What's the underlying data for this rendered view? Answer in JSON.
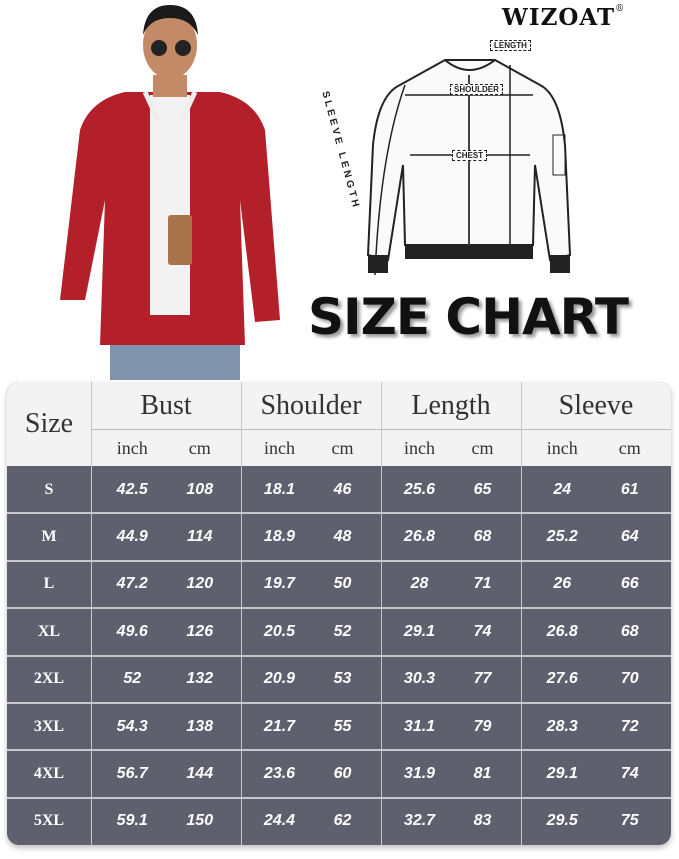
{
  "brand": "WIZOAT",
  "brand_mark": "®",
  "title": "SIZE CHART",
  "diagram": {
    "length": "LENGTH",
    "shoulder": "SHOULDER",
    "chest": "CHEST",
    "sleeve": "SLEEVE LENGTH"
  },
  "colors": {
    "jacket": "#b3202a",
    "table_body": "#5e606e",
    "table_header": "#f3f3f3"
  },
  "table": {
    "size_header": "Size",
    "groups": [
      "Bust",
      "Shoulder",
      "Length",
      "Sleeve"
    ],
    "units": [
      "inch",
      "cm"
    ],
    "rows": [
      {
        "size": "S",
        "values": [
          "42.5",
          "108",
          "18.1",
          "46",
          "25.6",
          "65",
          "24",
          "61"
        ]
      },
      {
        "size": "M",
        "values": [
          "44.9",
          "114",
          "18.9",
          "48",
          "26.8",
          "68",
          "25.2",
          "64"
        ]
      },
      {
        "size": "L",
        "values": [
          "47.2",
          "120",
          "19.7",
          "50",
          "28",
          "71",
          "26",
          "66"
        ]
      },
      {
        "size": "XL",
        "values": [
          "49.6",
          "126",
          "20.5",
          "52",
          "29.1",
          "74",
          "26.8",
          "68"
        ]
      },
      {
        "size": "2XL",
        "values": [
          "52",
          "132",
          "20.9",
          "53",
          "30.3",
          "77",
          "27.6",
          "70"
        ]
      },
      {
        "size": "3XL",
        "values": [
          "54.3",
          "138",
          "21.7",
          "55",
          "31.1",
          "79",
          "28.3",
          "72"
        ]
      },
      {
        "size": "4XL",
        "values": [
          "56.7",
          "144",
          "23.6",
          "60",
          "31.9",
          "81",
          "29.1",
          "74"
        ]
      },
      {
        "size": "5XL",
        "values": [
          "59.1",
          "150",
          "24.4",
          "62",
          "32.7",
          "83",
          "29.5",
          "75"
        ]
      }
    ]
  }
}
